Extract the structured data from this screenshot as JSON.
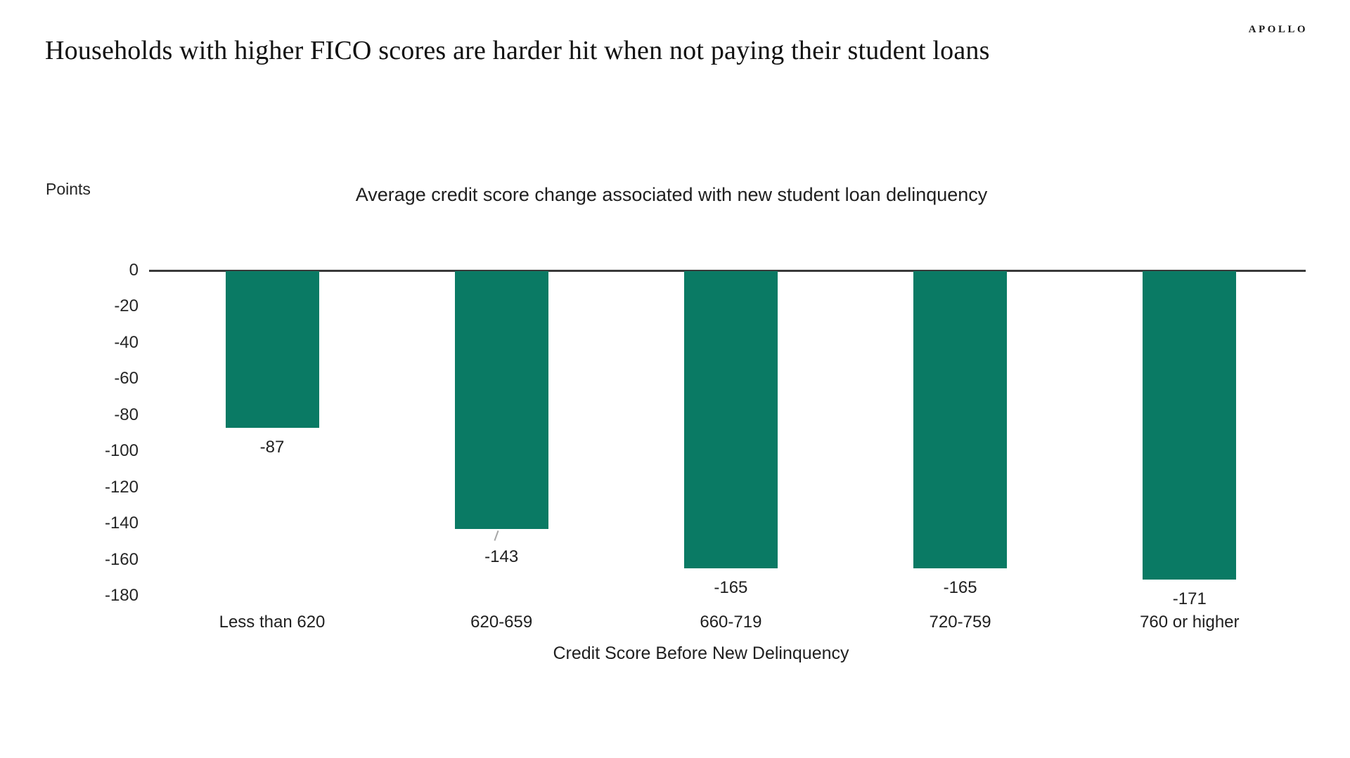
{
  "header": {
    "brand": "APOLLO",
    "title": "Households with higher FICO scores are harder hit when not paying their student loans"
  },
  "chart_data": {
    "type": "bar",
    "title": "Average credit score change associated with new student loan delinquency",
    "unit_label": "Points",
    "xlabel": "Credit Score Before New Delinquency",
    "categories": [
      "Less than 620",
      "620-659",
      "660-719",
      "720-759",
      "760 or higher"
    ],
    "values": [
      -87,
      -143,
      -165,
      -165,
      -171
    ],
    "data_labels": [
      "-87",
      "-143",
      "-165",
      "-165",
      "-171"
    ],
    "ylim": [
      -180,
      0
    ],
    "yticks": [
      0,
      -20,
      -40,
      -60,
      -80,
      -100,
      -120,
      -140,
      -160,
      -180
    ],
    "grid": false,
    "legend": "none",
    "leader_line_category": "620-659",
    "colors": {
      "bar": "#0a7a64",
      "axis_line": "#3a3a3a",
      "leader_line": "#a6a6a6",
      "text": "#212121"
    }
  }
}
